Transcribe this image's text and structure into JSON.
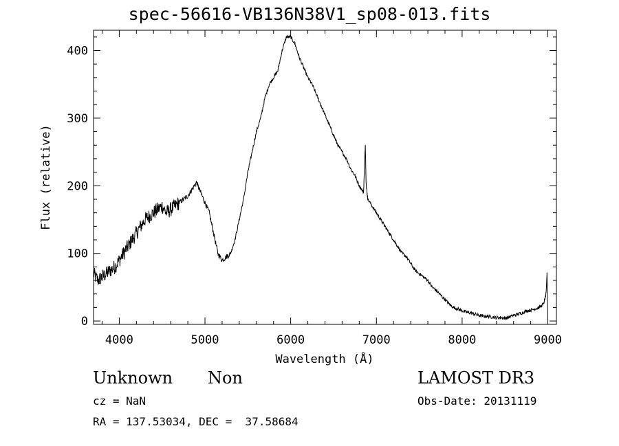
{
  "chart_data": {
    "type": "line",
    "title": "spec-56616-VB136N38V1_sp08-013.fits",
    "xlabel": "Wavelength (Å)",
    "ylabel": "Flux (relative)",
    "xlim": [
      3700,
      9100
    ],
    "ylim": [
      -5,
      430
    ],
    "xticks": [
      4000,
      5000,
      6000,
      7000,
      8000,
      9000
    ],
    "yticks": [
      0,
      100,
      200,
      300,
      400
    ],
    "grid": false,
    "series": [
      {
        "name": "flux",
        "x": [
          3700,
          3750,
          3800,
          3850,
          3900,
          3950,
          4000,
          4050,
          4100,
          4150,
          4200,
          4250,
          4300,
          4350,
          4400,
          4450,
          4500,
          4550,
          4600,
          4650,
          4700,
          4750,
          4800,
          4850,
          4900,
          4950,
          5000,
          5050,
          5100,
          5150,
          5200,
          5250,
          5300,
          5350,
          5400,
          5450,
          5500,
          5550,
          5600,
          5650,
          5700,
          5750,
          5800,
          5850,
          5900,
          5950,
          6000,
          6050,
          6100,
          6150,
          6200,
          6250,
          6300,
          6350,
          6400,
          6450,
          6500,
          6550,
          6600,
          6650,
          6700,
          6750,
          6800,
          6850,
          6870,
          6880,
          6890,
          6900,
          6950,
          7000,
          7050,
          7100,
          7150,
          7200,
          7250,
          7300,
          7350,
          7400,
          7450,
          7500,
          7550,
          7600,
          7650,
          7700,
          7750,
          7800,
          7850,
          7900,
          7950,
          8000,
          8050,
          8100,
          8150,
          8200,
          8250,
          8300,
          8350,
          8400,
          8450,
          8500,
          8550,
          8600,
          8650,
          8700,
          8750,
          8800,
          8850,
          8900,
          8950,
          8980,
          8990,
          9000
        ],
        "y": [
          70,
          60,
          65,
          70,
          75,
          80,
          90,
          100,
          110,
          120,
          130,
          140,
          150,
          155,
          160,
          165,
          170,
          160,
          165,
          170,
          175,
          180,
          185,
          195,
          205,
          190,
          175,
          160,
          130,
          100,
          90,
          95,
          100,
          120,
          150,
          180,
          220,
          250,
          280,
          300,
          330,
          350,
          360,
          370,
          400,
          420,
          420,
          410,
          390,
          375,
          360,
          350,
          335,
          320,
          305,
          290,
          275,
          260,
          250,
          240,
          225,
          215,
          200,
          190,
          260,
          205,
          190,
          180,
          170,
          160,
          150,
          140,
          130,
          120,
          110,
          100,
          95,
          85,
          75,
          70,
          65,
          60,
          50,
          45,
          38,
          32,
          25,
          20,
          18,
          15,
          13,
          12,
          10,
          8,
          7,
          7,
          6,
          5,
          5,
          4,
          6,
          8,
          10,
          12,
          15,
          16,
          18,
          20,
          25,
          40,
          72,
          5
        ]
      }
    ]
  },
  "info": {
    "class": "Unknown",
    "subclass": "Non",
    "survey": "LAMOST DR3",
    "cz": "cz = NaN",
    "obs_date": "Obs-Date: 20131119",
    "radec": "RA = 137.53034, DEC =  37.58684"
  }
}
